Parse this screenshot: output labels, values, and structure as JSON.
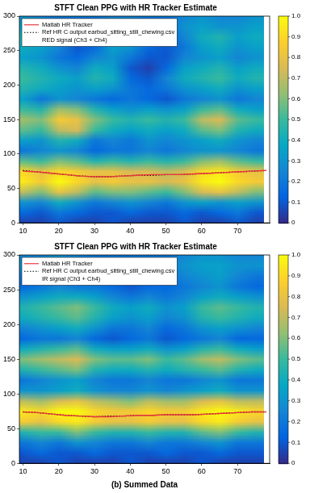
{
  "chart_data": [
    {
      "type": "heatmap",
      "title": "STFT Clean PPG with HR Tracker Estimate",
      "xlim": [
        9,
        79
      ],
      "xticks": [
        10,
        20,
        30,
        40,
        50,
        60,
        70
      ],
      "ylim": [
        0,
        300
      ],
      "yticks": [
        0,
        50,
        100,
        150,
        200,
        250,
        300
      ],
      "grid": false,
      "legend": "upper left",
      "heatmap": {
        "name": "RED signal (Ch3 + Ch4)",
        "x": [
          10,
          15,
          20,
          25,
          30,
          35,
          40,
          45,
          50,
          55,
          60,
          65,
          70,
          75
        ],
        "y": [
          0,
          15,
          30,
          45,
          60,
          75,
          90,
          105,
          120,
          135,
          150,
          165,
          180,
          195,
          210,
          225,
          240,
          255,
          270,
          285,
          300
        ],
        "z": [
          [
            0.05,
            0.05,
            0.1,
            0.05,
            0.05,
            0.1,
            0.05,
            0.05,
            0.05,
            0.1,
            0.05,
            0.05,
            0.1,
            0.05
          ],
          [
            0.15,
            0.1,
            0.2,
            0.15,
            0.1,
            0.1,
            0.15,
            0.1,
            0.1,
            0.15,
            0.1,
            0.15,
            0.2,
            0.1
          ],
          [
            0.3,
            0.25,
            0.4,
            0.3,
            0.2,
            0.25,
            0.3,
            0.25,
            0.2,
            0.3,
            0.35,
            0.3,
            0.35,
            0.3
          ],
          [
            0.7,
            0.6,
            0.8,
            0.7,
            0.55,
            0.6,
            0.6,
            0.55,
            0.5,
            0.6,
            0.75,
            0.8,
            0.7,
            0.6
          ],
          [
            0.95,
            0.85,
            1.0,
            0.9,
            0.8,
            0.85,
            0.8,
            0.8,
            0.75,
            0.8,
            0.95,
            1.0,
            0.9,
            0.85
          ],
          [
            0.9,
            0.8,
            0.9,
            0.85,
            0.8,
            0.8,
            0.75,
            0.75,
            0.7,
            0.75,
            0.9,
            0.95,
            0.85,
            0.8
          ],
          [
            0.55,
            0.5,
            0.6,
            0.55,
            0.45,
            0.5,
            0.45,
            0.5,
            0.45,
            0.5,
            0.6,
            0.65,
            0.55,
            0.5
          ],
          [
            0.2,
            0.25,
            0.3,
            0.25,
            0.15,
            0.2,
            0.2,
            0.25,
            0.2,
            0.25,
            0.3,
            0.3,
            0.25,
            0.2
          ],
          [
            0.35,
            0.3,
            0.45,
            0.4,
            0.2,
            0.25,
            0.2,
            0.3,
            0.25,
            0.3,
            0.35,
            0.4,
            0.3,
            0.25
          ],
          [
            0.55,
            0.5,
            0.7,
            0.75,
            0.5,
            0.4,
            0.35,
            0.4,
            0.35,
            0.4,
            0.55,
            0.6,
            0.45,
            0.4
          ],
          [
            0.65,
            0.6,
            0.85,
            0.8,
            0.6,
            0.5,
            0.45,
            0.5,
            0.45,
            0.5,
            0.7,
            0.75,
            0.55,
            0.5
          ],
          [
            0.5,
            0.45,
            0.65,
            0.6,
            0.45,
            0.35,
            0.3,
            0.35,
            0.3,
            0.35,
            0.5,
            0.55,
            0.4,
            0.35
          ],
          [
            0.35,
            0.2,
            0.3,
            0.25,
            0.2,
            0.15,
            0.2,
            0.15,
            0.1,
            0.2,
            0.25,
            0.3,
            0.2,
            0.25
          ],
          [
            0.45,
            0.4,
            0.35,
            0.3,
            0.35,
            0.3,
            0.2,
            0.15,
            0.2,
            0.3,
            0.35,
            0.4,
            0.3,
            0.35
          ],
          [
            0.5,
            0.45,
            0.4,
            0.35,
            0.45,
            0.4,
            0.15,
            0.1,
            0.25,
            0.4,
            0.45,
            0.5,
            0.4,
            0.45
          ],
          [
            0.45,
            0.4,
            0.3,
            0.25,
            0.4,
            0.35,
            0.1,
            0.05,
            0.15,
            0.35,
            0.4,
            0.45,
            0.35,
            0.4
          ],
          [
            0.35,
            0.3,
            0.2,
            0.15,
            0.25,
            0.3,
            0.2,
            0.1,
            0.1,
            0.25,
            0.3,
            0.35,
            0.25,
            0.3
          ],
          [
            0.4,
            0.35,
            0.25,
            0.1,
            0.15,
            0.35,
            0.3,
            0.15,
            0.1,
            0.2,
            0.35,
            0.4,
            0.3,
            0.35
          ],
          [
            0.45,
            0.4,
            0.3,
            0.15,
            0.2,
            0.4,
            0.35,
            0.2,
            0.15,
            0.25,
            0.4,
            0.45,
            0.35,
            0.4
          ],
          [
            0.35,
            0.3,
            0.25,
            0.2,
            0.25,
            0.3,
            0.3,
            0.25,
            0.2,
            0.3,
            0.35,
            0.3,
            0.3,
            0.35
          ],
          [
            0.3,
            0.25,
            0.2,
            0.2,
            0.2,
            0.25,
            0.25,
            0.2,
            0.2,
            0.25,
            0.3,
            0.25,
            0.25,
            0.3
          ]
        ],
        "zlim": [
          0,
          1
        ],
        "zticks": [
          0,
          0.1,
          0.2,
          0.3,
          0.4,
          0.5,
          0.6,
          0.7,
          0.8,
          0.9,
          {
            "value": 1,
            "label": "1.0"
          }
        ]
      },
      "x": [
        10,
        14,
        18,
        22,
        26,
        30,
        34,
        38,
        42,
        46,
        50,
        54,
        58,
        62,
        66,
        70,
        74,
        78
      ],
      "series": [
        {
          "name": "Matlab HR Tracker",
          "color": "#e8383d",
          "line_style": "solid",
          "values": [
            75,
            74,
            72,
            70,
            68,
            67,
            67,
            68,
            69,
            70,
            70,
            70,
            71,
            72,
            73,
            74,
            75,
            76
          ]
        },
        {
          "name": "Ref HR C output earbud_sitting_still_chewing.csv",
          "color": "#000000",
          "line_style": "dotted",
          "values": [
            76,
            74,
            72,
            70,
            68,
            67,
            67,
            68,
            69,
            69,
            70,
            70,
            71,
            72,
            73,
            74,
            75,
            76
          ]
        }
      ]
    },
    {
      "type": "heatmap",
      "title": "STFT Clean PPG with HR Tracker Estimate",
      "xlabel": "(b) Summed Data",
      "xlim": [
        9,
        79
      ],
      "xticks": [
        10,
        20,
        30,
        40,
        50,
        60,
        70
      ],
      "ylim": [
        0,
        300
      ],
      "yticks": [
        0,
        50,
        100,
        150,
        200,
        250,
        300
      ],
      "grid": false,
      "legend": "upper left",
      "heatmap": {
        "name": "IR signal (Ch3 + Ch4)",
        "x": [
          10,
          15,
          20,
          25,
          30,
          35,
          40,
          45,
          50,
          55,
          60,
          65,
          70,
          75
        ],
        "y": [
          0,
          15,
          30,
          45,
          60,
          75,
          90,
          105,
          120,
          135,
          150,
          165,
          180,
          195,
          210,
          225,
          240,
          255,
          270,
          285,
          300
        ],
        "z": [
          [
            0.05,
            0.05,
            0.1,
            0.05,
            0.05,
            0.05,
            0.1,
            0.05,
            0.05,
            0.05,
            0.1,
            0.05,
            0.05,
            0.05
          ],
          [
            0.1,
            0.15,
            0.1,
            0.1,
            0.15,
            0.1,
            0.1,
            0.1,
            0.15,
            0.1,
            0.1,
            0.15,
            0.1,
            0.1
          ],
          [
            0.2,
            0.25,
            0.2,
            0.3,
            0.25,
            0.2,
            0.2,
            0.25,
            0.2,
            0.2,
            0.25,
            0.3,
            0.2,
            0.2
          ],
          [
            0.45,
            0.5,
            0.5,
            0.6,
            0.5,
            0.45,
            0.45,
            0.5,
            0.45,
            0.45,
            0.55,
            0.6,
            0.5,
            0.45
          ],
          [
            0.85,
            0.8,
            0.9,
            0.95,
            0.85,
            0.8,
            0.8,
            0.85,
            0.8,
            0.8,
            0.9,
            0.95,
            0.85,
            0.8
          ],
          [
            0.95,
            0.9,
            1.0,
            1.0,
            0.9,
            0.85,
            0.85,
            0.9,
            0.85,
            0.85,
            0.95,
            1.0,
            0.95,
            0.9
          ],
          [
            0.7,
            0.65,
            0.75,
            0.8,
            0.7,
            0.65,
            0.6,
            0.7,
            0.65,
            0.65,
            0.75,
            0.8,
            0.7,
            0.7
          ],
          [
            0.3,
            0.3,
            0.35,
            0.4,
            0.3,
            0.25,
            0.25,
            0.3,
            0.25,
            0.3,
            0.35,
            0.4,
            0.3,
            0.3
          ],
          [
            0.2,
            0.25,
            0.3,
            0.35,
            0.25,
            0.2,
            0.2,
            0.25,
            0.2,
            0.2,
            0.25,
            0.3,
            0.2,
            0.2
          ],
          [
            0.45,
            0.5,
            0.55,
            0.6,
            0.45,
            0.4,
            0.4,
            0.45,
            0.4,
            0.45,
            0.5,
            0.55,
            0.45,
            0.4
          ],
          [
            0.6,
            0.65,
            0.7,
            0.75,
            0.6,
            0.55,
            0.55,
            0.6,
            0.5,
            0.55,
            0.65,
            0.7,
            0.6,
            0.55
          ],
          [
            0.4,
            0.45,
            0.5,
            0.55,
            0.4,
            0.35,
            0.35,
            0.4,
            0.3,
            0.35,
            0.45,
            0.5,
            0.4,
            0.35
          ],
          [
            0.15,
            0.2,
            0.2,
            0.25,
            0.15,
            0.1,
            0.15,
            0.2,
            0.1,
            0.15,
            0.2,
            0.25,
            0.15,
            0.15
          ],
          [
            0.25,
            0.3,
            0.35,
            0.4,
            0.3,
            0.2,
            0.2,
            0.25,
            0.15,
            0.2,
            0.3,
            0.35,
            0.3,
            0.25
          ],
          [
            0.4,
            0.45,
            0.5,
            0.55,
            0.45,
            0.35,
            0.3,
            0.35,
            0.25,
            0.3,
            0.45,
            0.5,
            0.45,
            0.4
          ],
          [
            0.45,
            0.5,
            0.55,
            0.6,
            0.5,
            0.4,
            0.35,
            0.4,
            0.3,
            0.35,
            0.5,
            0.55,
            0.5,
            0.45
          ],
          [
            0.3,
            0.35,
            0.4,
            0.4,
            0.35,
            0.25,
            0.2,
            0.25,
            0.2,
            0.25,
            0.35,
            0.4,
            0.35,
            0.3
          ],
          [
            0.15,
            0.2,
            0.25,
            0.2,
            0.2,
            0.15,
            0.1,
            0.15,
            0.15,
            0.2,
            0.25,
            0.3,
            0.2,
            0.15
          ],
          [
            0.2,
            0.25,
            0.3,
            0.25,
            0.2,
            0.2,
            0.15,
            0.2,
            0.2,
            0.25,
            0.3,
            0.35,
            0.25,
            0.2
          ],
          [
            0.3,
            0.3,
            0.35,
            0.3,
            0.25,
            0.25,
            0.2,
            0.25,
            0.25,
            0.3,
            0.35,
            0.35,
            0.3,
            0.3
          ],
          [
            0.25,
            0.25,
            0.3,
            0.25,
            0.2,
            0.2,
            0.2,
            0.2,
            0.2,
            0.25,
            0.3,
            0.3,
            0.25,
            0.25
          ]
        ],
        "zlim": [
          0,
          1
        ],
        "zticks": [
          0,
          0.1,
          0.2,
          0.3,
          0.4,
          0.5,
          0.6,
          0.7,
          0.8,
          0.9,
          {
            "value": 1,
            "label": "1.0"
          }
        ]
      },
      "x": [
        10,
        14,
        18,
        22,
        26,
        30,
        34,
        38,
        42,
        46,
        50,
        54,
        58,
        62,
        66,
        70,
        74,
        78
      ],
      "series": [
        {
          "name": "Matlab HR Tracker",
          "color": "#e8383d",
          "line_style": "solid",
          "values": [
            74,
            73,
            71,
            69,
            68,
            67,
            67,
            68,
            69,
            69,
            70,
            70,
            70,
            71,
            72,
            73,
            74,
            74
          ]
        },
        {
          "name": "Ref HR C output earbud_sitting_still_chewing.csv",
          "color": "#000000",
          "line_style": "dotted",
          "values": [
            74,
            73,
            71,
            69,
            68,
            67,
            68,
            68,
            69,
            69,
            70,
            70,
            70,
            71,
            72,
            73,
            74,
            74
          ]
        }
      ]
    }
  ]
}
